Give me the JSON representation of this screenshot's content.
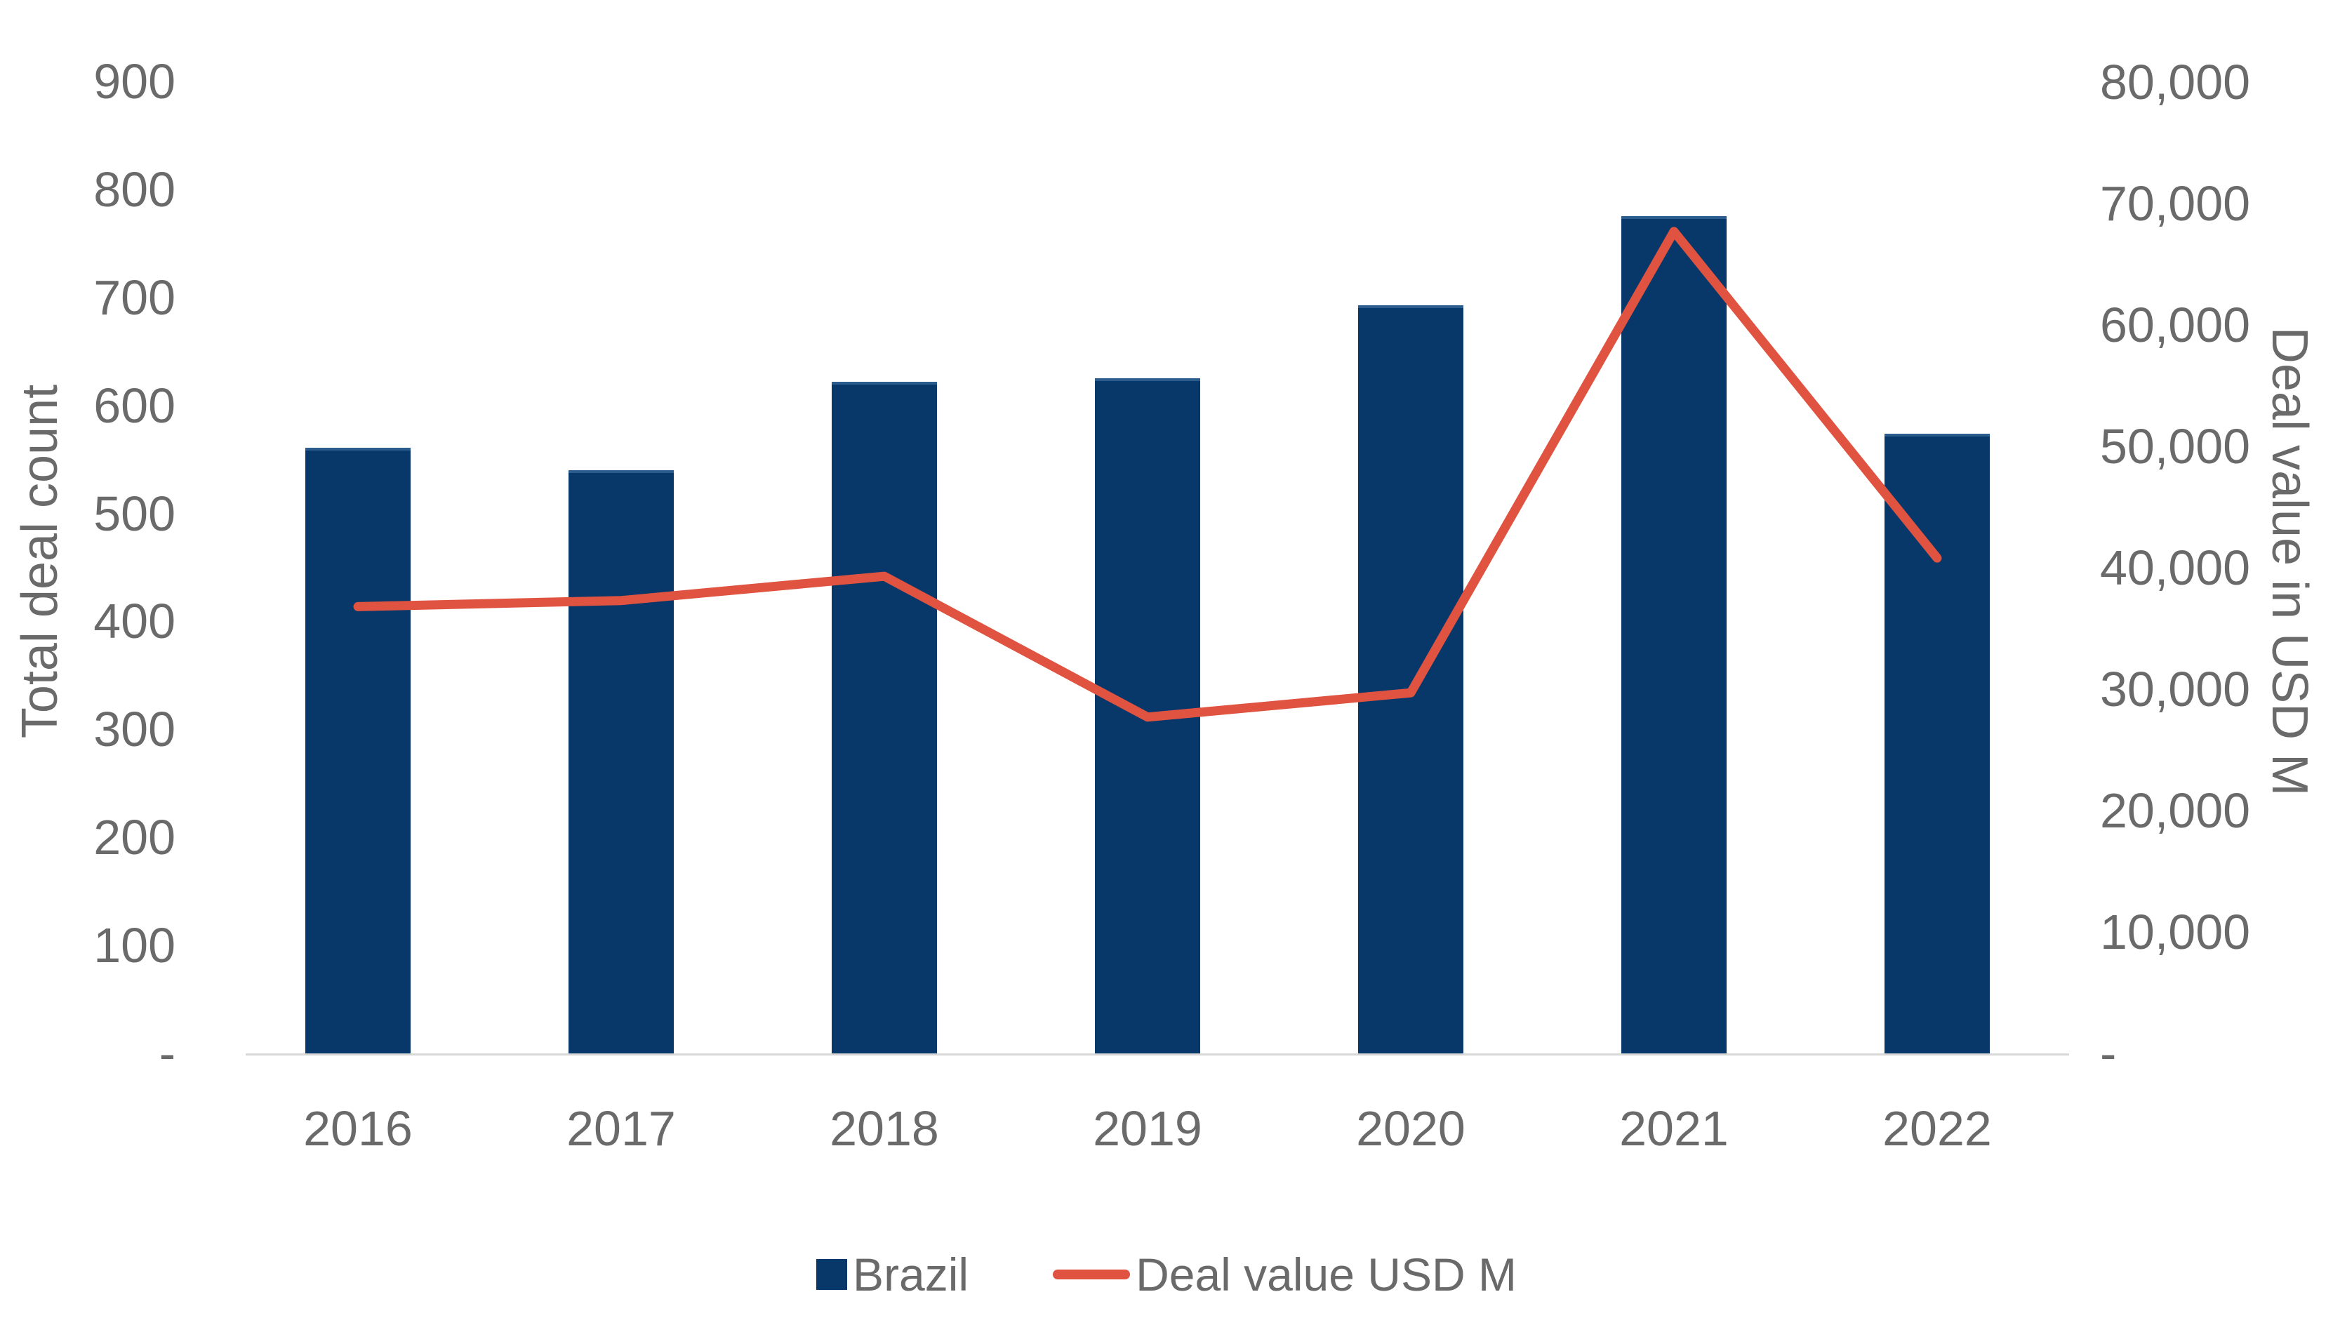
{
  "chart_data": {
    "type": "bar",
    "subtype": "combo-bar-line-dual-axis",
    "categories": [
      "2016",
      "2017",
      "2018",
      "2019",
      "2020",
      "2021",
      "2022"
    ],
    "series": [
      {
        "name": "Brazil",
        "render": "bar",
        "axis": "left",
        "values": [
          561,
          540,
          622,
          625,
          693,
          775,
          574
        ],
        "color": "#073869"
      },
      {
        "name": "Deal value USD M",
        "render": "line",
        "axis": "right",
        "values": [
          36800,
          37300,
          39300,
          27700,
          29700,
          67700,
          40800
        ],
        "color": "#df5340"
      }
    ],
    "left_axis": {
      "label": "Total deal count",
      "min": 0,
      "max": 900,
      "step": 100,
      "tick_labels": [
        "-",
        "100",
        "200",
        "300",
        "400",
        "500",
        "600",
        "700",
        "800",
        "900"
      ]
    },
    "right_axis": {
      "label": "Deal value in USD M",
      "min": 0,
      "max": 80000,
      "step": 10000,
      "tick_labels": [
        "-",
        "10,000",
        "20,000",
        "30,000",
        "40,000",
        "50,000",
        "60,000",
        "70,000",
        "80,000"
      ]
    },
    "grid": false,
    "legend_position": "bottom",
    "legend": [
      {
        "label": "Brazil",
        "swatch": "square",
        "color": "#073869"
      },
      {
        "label": "Deal value USD M",
        "swatch": "line",
        "color": "#df5340"
      }
    ]
  }
}
